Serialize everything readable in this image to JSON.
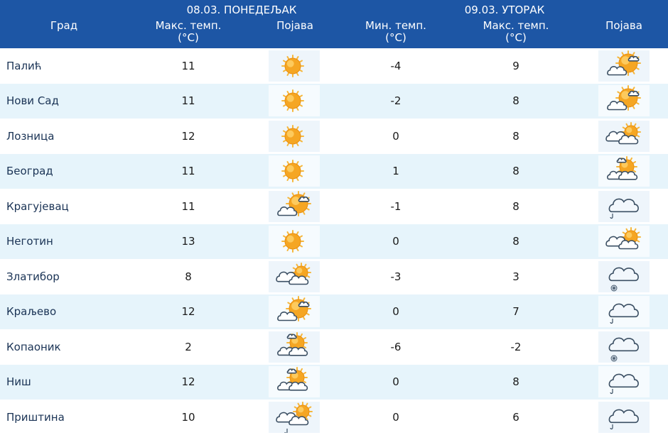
{
  "header": {
    "city_col": "Град",
    "day1_label": "08.03. ПОНЕДЕЉАК",
    "day1_max_temp_label": "Макс. темп.",
    "day1_max_temp_unit": "(°C)",
    "day1_phenomenon_label": "Појава",
    "day2_label": "09.03. УТОРАК",
    "day2_min_temp_label": "Мин. темп.",
    "day2_min_temp_unit": "(°C)",
    "day2_max_temp_label": "Макс. темп.",
    "day2_max_temp_unit": "(°C)",
    "day2_phenomenon_label": "Појава"
  },
  "colors": {
    "header_bg": "#1d56a5",
    "row_alt_bg": "#e6f4fb",
    "sun": "#f5a623",
    "cloud_outline": "#3b4f63"
  },
  "rows": [
    {
      "city": "Палић",
      "day1_max": "11",
      "day1_icon": "sun-icon",
      "day2_min": "-4",
      "day2_max": "9",
      "day2_icon": "partly-cloudy-icon"
    },
    {
      "city": "Нови Сад",
      "day1_max": "11",
      "day1_icon": "sun-icon",
      "day2_min": "-2",
      "day2_max": "8",
      "day2_icon": "partly-cloudy-icon"
    },
    {
      "city": "Лозница",
      "day1_max": "12",
      "day1_icon": "sun-icon",
      "day2_min": "0",
      "day2_max": "8",
      "day2_icon": "mostly-cloudy-icon"
    },
    {
      "city": "Београд",
      "day1_max": "11",
      "day1_icon": "sun-icon",
      "day2_min": "1",
      "day2_max": "8",
      "day2_icon": "sun-clouds-icon"
    },
    {
      "city": "Крагујевац",
      "day1_max": "11",
      "day1_icon": "partly-cloudy-icon",
      "day2_min": "-1",
      "day2_max": "8",
      "day2_icon": "cloud-rain-icon"
    },
    {
      "city": "Неготин",
      "day1_max": "13",
      "day1_icon": "sun-icon",
      "day2_min": "0",
      "day2_max": "8",
      "day2_icon": "mostly-cloudy-icon"
    },
    {
      "city": "Златибор",
      "day1_max": "8",
      "day1_icon": "mostly-cloudy-icon",
      "day2_min": "-3",
      "day2_max": "3",
      "day2_icon": "cloud-snow-icon"
    },
    {
      "city": "Краљево",
      "day1_max": "12",
      "day1_icon": "partly-cloudy-icon",
      "day2_min": "0",
      "day2_max": "7",
      "day2_icon": "cloud-rain-icon"
    },
    {
      "city": "Копаоник",
      "day1_max": "2",
      "day1_icon": "sun-clouds-icon",
      "day2_min": "-6",
      "day2_max": "-2",
      "day2_icon": "cloud-snow-icon"
    },
    {
      "city": "Ниш",
      "day1_max": "12",
      "day1_icon": "sun-clouds-icon",
      "day2_min": "0",
      "day2_max": "8",
      "day2_icon": "cloud-rain-icon"
    },
    {
      "city": "Приштина",
      "day1_max": "10",
      "day1_icon": "mostly-cloudy-rain-icon",
      "day2_min": "0",
      "day2_max": "6",
      "day2_icon": "cloud-rain-icon"
    }
  ]
}
